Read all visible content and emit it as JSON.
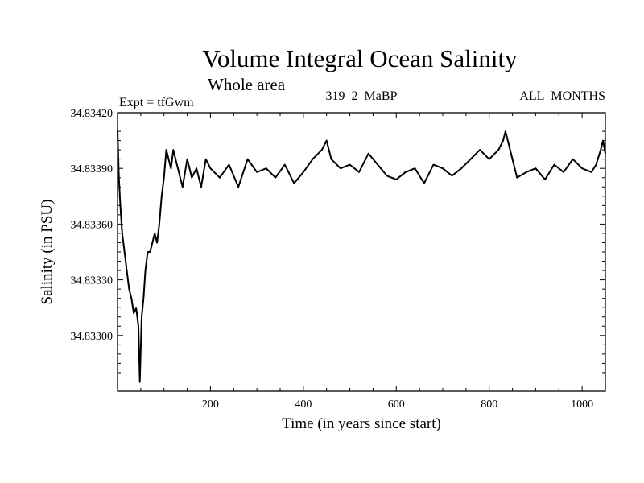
{
  "chart_data": {
    "type": "line",
    "title": "Volume Integral Ocean Salinity",
    "subtitle": "Whole area",
    "experiment_label": "Expt = tfGwm",
    "run_label": "319_2_MaBP",
    "period_label": "ALL_MONTHS",
    "xlabel": "Time (in years since start)",
    "ylabel": "Salinity (in PSU)",
    "xlim": [
      0,
      1050
    ],
    "ylim": [
      34.8327,
      34.8342
    ],
    "x_ticks": [
      200,
      400,
      600,
      800,
      1000
    ],
    "y_ticks": [
      "34.83300",
      "34.83330",
      "34.83360",
      "34.83390",
      "34.83420"
    ],
    "grid": false,
    "series": [
      {
        "name": "salinity",
        "color": "#000000",
        "x": [
          0,
          3,
          6,
          10,
          15,
          20,
          25,
          30,
          35,
          40,
          45,
          48,
          52,
          56,
          60,
          65,
          70,
          75,
          80,
          85,
          90,
          95,
          100,
          105,
          110,
          115,
          120,
          125,
          130,
          135,
          140,
          150,
          160,
          170,
          180,
          190,
          200,
          220,
          240,
          260,
          280,
          300,
          320,
          340,
          360,
          380,
          400,
          420,
          440,
          450,
          460,
          480,
          500,
          520,
          540,
          560,
          580,
          600,
          620,
          640,
          660,
          680,
          700,
          720,
          740,
          760,
          780,
          800,
          820,
          830,
          835,
          840,
          860,
          880,
          900,
          920,
          940,
          960,
          980,
          1000,
          1020,
          1030,
          1040,
          1045,
          1050
        ],
        "values": [
          34.8341,
          34.83385,
          34.8337,
          34.83355,
          34.83345,
          34.83335,
          34.83325,
          34.8332,
          34.83312,
          34.83315,
          34.83305,
          34.83275,
          34.8331,
          34.8332,
          34.83335,
          34.83345,
          34.83345,
          34.8335,
          34.83355,
          34.8335,
          34.8336,
          34.83375,
          34.83385,
          34.834,
          34.83395,
          34.8339,
          34.834,
          34.83395,
          34.8339,
          34.83385,
          34.8338,
          34.83395,
          34.83385,
          34.8339,
          34.8338,
          34.83395,
          34.8339,
          34.83385,
          34.83392,
          34.8338,
          34.83395,
          34.83388,
          34.8339,
          34.83385,
          34.83392,
          34.83382,
          34.83388,
          34.83395,
          34.834,
          34.83405,
          34.83395,
          34.8339,
          34.83392,
          34.83388,
          34.83398,
          34.83392,
          34.83386,
          34.83384,
          34.83388,
          34.8339,
          34.83382,
          34.83392,
          34.8339,
          34.83386,
          34.8339,
          34.83395,
          34.834,
          34.83395,
          34.834,
          34.83405,
          34.8341,
          34.83405,
          34.83385,
          34.83388,
          34.8339,
          34.83384,
          34.83392,
          34.83388,
          34.83395,
          34.8339,
          34.83388,
          34.83392,
          34.834,
          34.83405,
          34.83398
        ]
      }
    ]
  }
}
